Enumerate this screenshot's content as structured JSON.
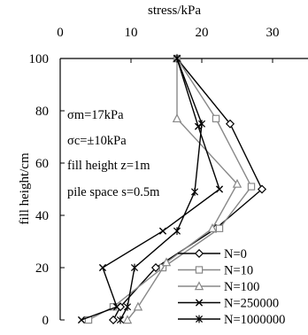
{
  "chart_data": {
    "type": "line",
    "xlabel": "stress/kPa",
    "ylabel": "fill height/cm",
    "xlim": [
      0,
      35
    ],
    "ylim": [
      0,
      100
    ],
    "x_ticks": [
      0,
      10,
      20,
      30
    ],
    "y_ticks": [
      0,
      20,
      40,
      60,
      80,
      100
    ],
    "x_axis_position": "top",
    "grid": false,
    "legend_position": "bottom-right",
    "annotations": [
      "σm=17kPa",
      "σc=±10kPa",
      "fill height z=1m",
      "pile space s=0.5m"
    ],
    "series": [
      {
        "name": "N=0",
        "color": "#000000",
        "marker": "diamond",
        "points": [
          [
            16.5,
            100
          ],
          [
            24,
            75
          ],
          [
            28.5,
            50
          ],
          [
            22,
            35
          ],
          [
            13.5,
            20
          ],
          [
            8.5,
            5
          ],
          [
            7.5,
            0
          ]
        ]
      },
      {
        "name": "N=10",
        "color": "#888888",
        "marker": "square",
        "points": [
          [
            16.5,
            100
          ],
          [
            22,
            77
          ],
          [
            27,
            51
          ],
          [
            22.5,
            35
          ],
          [
            14.5,
            20
          ],
          [
            7.5,
            5
          ],
          [
            4,
            0
          ]
        ]
      },
      {
        "name": "N=100",
        "color": "#888888",
        "marker": "triangle",
        "points": [
          [
            16.5,
            100
          ],
          [
            16.5,
            77
          ],
          [
            25,
            52
          ],
          [
            21.5,
            35
          ],
          [
            15,
            22
          ],
          [
            11,
            5
          ],
          [
            9.5,
            0
          ]
        ]
      },
      {
        "name": "N=250000",
        "color": "#000000",
        "marker": "x",
        "points": [
          [
            16.5,
            100
          ],
          [
            19.5,
            74
          ],
          [
            22.5,
            50
          ],
          [
            14.5,
            34
          ],
          [
            6,
            20
          ],
          [
            8,
            5
          ],
          [
            3,
            0
          ]
        ]
      },
      {
        "name": "N=1000000",
        "color": "#000000",
        "marker": "asterisk",
        "points": [
          [
            16.5,
            100
          ],
          [
            20,
            75
          ],
          [
            19,
            49
          ],
          [
            16.5,
            34
          ],
          [
            10.5,
            20
          ],
          [
            9.5,
            5
          ],
          [
            8.5,
            0
          ]
        ]
      }
    ]
  }
}
